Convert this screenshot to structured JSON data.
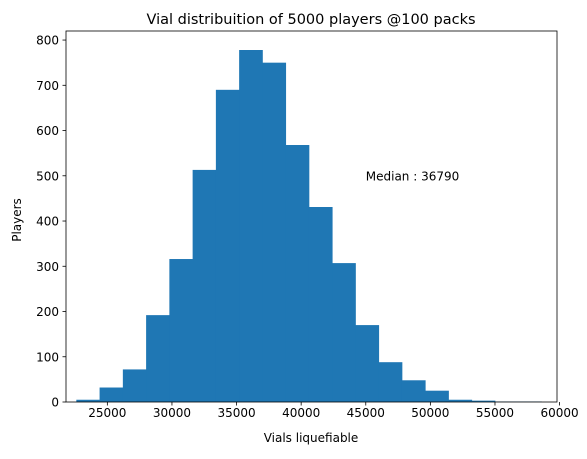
{
  "chart_data": {
    "type": "bar",
    "title": "Vial distribuition of 5000 players @100 packs",
    "xlabel": "Vials liquefiable",
    "ylabel": "Players",
    "xlim": [
      21800,
      59800
    ],
    "ylim": [
      0,
      820
    ],
    "x_ticks": [
      25000,
      30000,
      35000,
      40000,
      45000,
      50000,
      55000,
      60000
    ],
    "y_ticks": [
      0,
      100,
      200,
      300,
      400,
      500,
      600,
      700,
      800
    ],
    "grid": false,
    "bin_edges": [
      22600,
      24400,
      26200,
      28000,
      29800,
      31600,
      33400,
      35200,
      37000,
      38800,
      40600,
      42400,
      44200,
      46000,
      47800,
      49600,
      51400,
      53200,
      55000,
      56800,
      58600
    ],
    "counts": [
      5,
      32,
      72,
      192,
      316,
      513,
      690,
      778,
      750,
      568,
      431,
      307,
      170,
      88,
      48,
      25,
      5,
      3,
      1,
      1
    ],
    "color": "#1f77b4",
    "annotations": [
      {
        "text": "Median : 36790",
        "x": 45000,
        "y": 500
      }
    ]
  }
}
